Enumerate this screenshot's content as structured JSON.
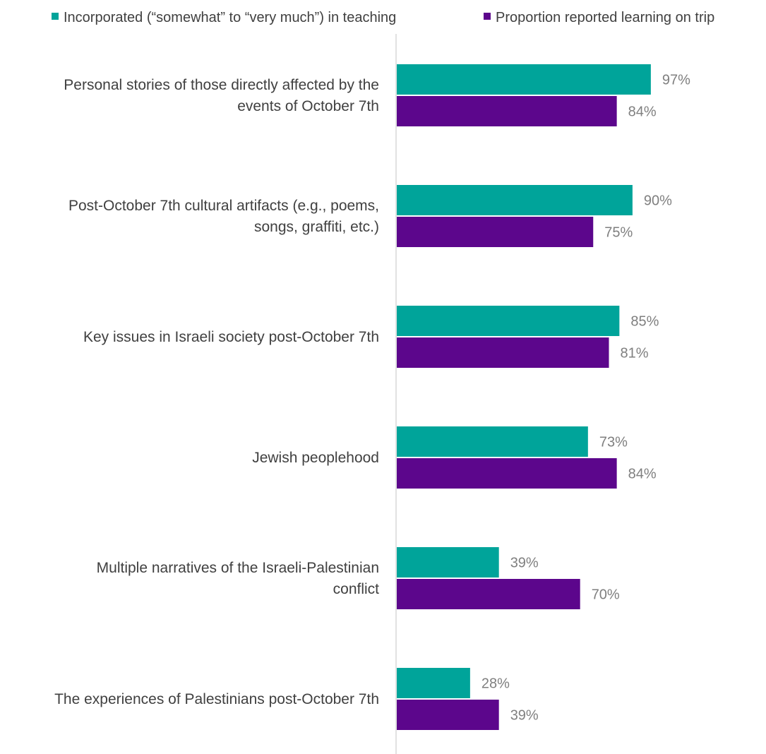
{
  "chart_data": {
    "type": "bar",
    "orientation": "horizontal",
    "categories": [
      [
        "Personal stories of those directly affected by the",
        "events of October 7th"
      ],
      [
        "Post-October 7th cultural artifacts (e.g., poems,",
        "songs, graffiti, etc.)"
      ],
      [
        "Key issues in Israeli society post-October 7th"
      ],
      [
        "Jewish peoplehood"
      ],
      [
        "Multiple narratives of the Israeli-Palestinian",
        "conflict"
      ],
      [
        "The experiences of Palestinians post-October 7th"
      ]
    ],
    "series": [
      {
        "name": "Incorporated (“somewhat” to “very much”) in teaching",
        "color": "#00a49a",
        "values": [
          97,
          90,
          85,
          73,
          39,
          28
        ],
        "labels": [
          "97%",
          "90%",
          "85%",
          "73%",
          "39%",
          "28%"
        ]
      },
      {
        "name": "Proportion reported learning on trip",
        "color": "#5c068c",
        "values": [
          84,
          75,
          81,
          84,
          70,
          39
        ],
        "labels": [
          "84%",
          "75%",
          "81%",
          "84%",
          "70%",
          "39%"
        ]
      }
    ],
    "xlim": [
      0,
      100
    ],
    "unit": "%",
    "grid": false,
    "legend_position": "top"
  }
}
